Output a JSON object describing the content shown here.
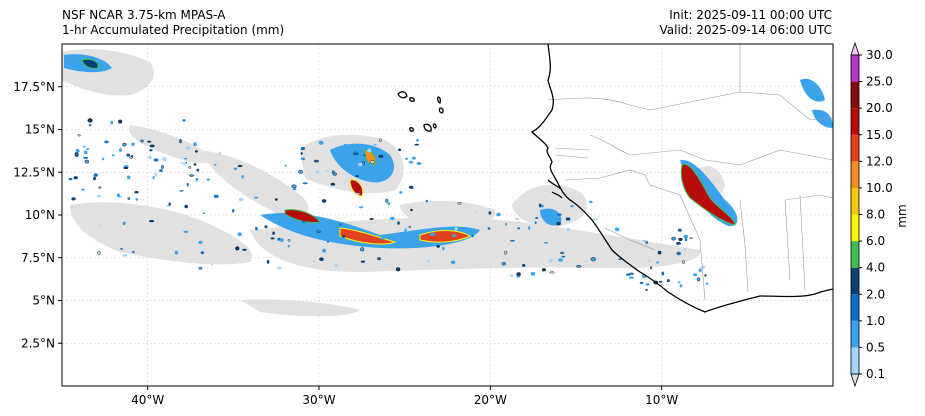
{
  "header": {
    "model": "NSF NCAR 3.75-km MPAS-A",
    "field": "1-hr Accumulated Precipitation (mm)",
    "init": "Init: 2025-09-11 00:00 UTC",
    "valid": "Valid: 2025-09-14 06:00 UTC"
  },
  "map": {
    "lon_range": [
      -45,
      0
    ],
    "lat_range": [
      0,
      20
    ],
    "lat_ticks": [
      {
        "value": 2.5,
        "label": "2.5°N"
      },
      {
        "value": 5,
        "label": "5°N"
      },
      {
        "value": 7.5,
        "label": "7.5°N"
      },
      {
        "value": 10,
        "label": "10°N"
      },
      {
        "value": 12.5,
        "label": "12.5°N"
      },
      {
        "value": 15,
        "label": "15°N"
      },
      {
        "value": 17.5,
        "label": "17.5°N"
      }
    ],
    "lon_ticks": [
      {
        "value": -40,
        "label": "40°W"
      },
      {
        "value": -30,
        "label": "30°W"
      },
      {
        "value": -20,
        "label": "20°W"
      },
      {
        "value": -10,
        "label": "10°W"
      }
    ],
    "gridlines": true
  },
  "colorbar": {
    "label": "mm",
    "levels": [
      "0.1",
      "0.5",
      "1.0",
      "2.0",
      "4.0",
      "6.0",
      "8.0",
      "10.0",
      "12.0",
      "15.0",
      "20.0",
      "25.0",
      "30.0"
    ],
    "colors": [
      "#e1e1e1",
      "#a6d6f7",
      "#3ba3ec",
      "#0f6fc2",
      "#0a3f73",
      "#3fbf4f",
      "#f6f608",
      "#f7c811",
      "#f18f1d",
      "#e3421e",
      "#b70c0c",
      "#870a0a",
      "#b835c9",
      "#f9c8f5"
    ]
  },
  "colors": {
    "coastline": "#000000",
    "borders": "#999999",
    "grid": "#cccccc"
  }
}
